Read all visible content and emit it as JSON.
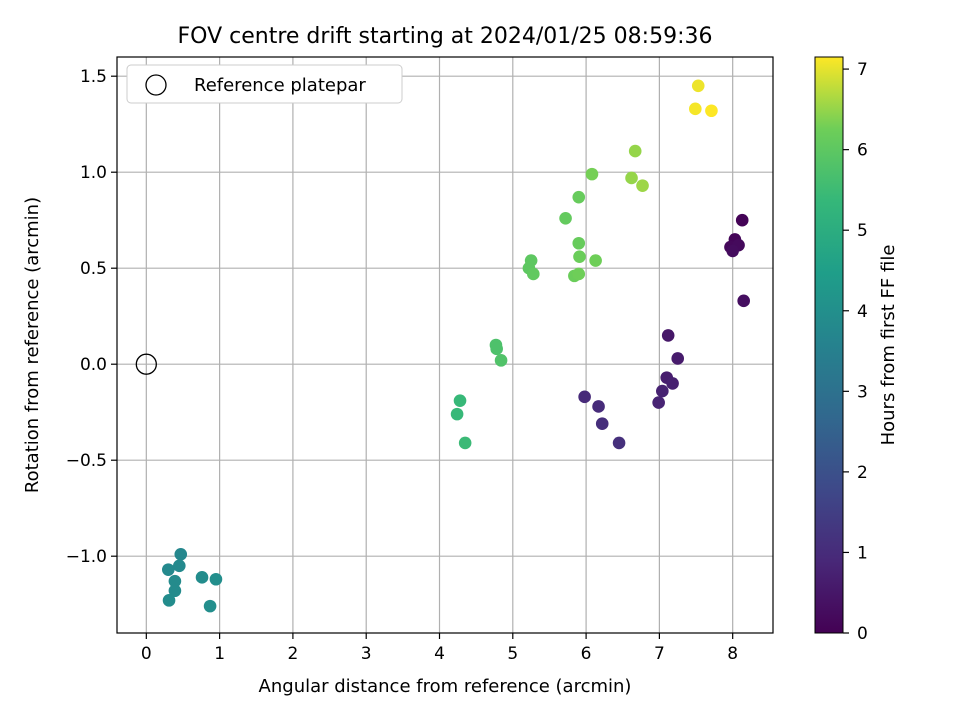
{
  "chart_data": {
    "type": "scatter",
    "title": "FOV centre drift starting at 2024/01/25 08:59:36",
    "xlabel": "Angular distance from reference (arcmin)",
    "ylabel": "Rotation from reference (arcmin)",
    "xlim": [
      -0.4,
      8.55
    ],
    "ylim": [
      -1.4,
      1.6
    ],
    "x_ticks": [
      0,
      1,
      2,
      3,
      4,
      5,
      6,
      7,
      8
    ],
    "y_ticks": [
      -1.0,
      -0.5,
      0.0,
      0.5,
      1.0,
      1.5
    ],
    "y_tick_labels": [
      "−1.0",
      "−0.5",
      "0.0",
      "0.5",
      "1.0",
      "1.5"
    ],
    "grid": true,
    "legend_position": "top-left",
    "reference": {
      "label": "Reference platepar",
      "x": 0,
      "y": 0
    },
    "colorbar": {
      "label": "Hours from first FF file",
      "colormap": "viridis",
      "range": [
        0,
        7.15
      ],
      "ticks": [
        0,
        1,
        2,
        3,
        4,
        5,
        6,
        7
      ]
    },
    "points": [
      {
        "x": 8.13,
        "y": 0.75,
        "c": 0.05
      },
      {
        "x": 8.03,
        "y": 0.65,
        "c": 0.1
      },
      {
        "x": 7.97,
        "y": 0.61,
        "c": 0.15
      },
      {
        "x": 8.08,
        "y": 0.62,
        "c": 0.2
      },
      {
        "x": 8.0,
        "y": 0.59,
        "c": 0.25
      },
      {
        "x": 8.15,
        "y": 0.33,
        "c": 0.3
      },
      {
        "x": 7.12,
        "y": 0.15,
        "c": 0.5
      },
      {
        "x": 7.25,
        "y": 0.03,
        "c": 0.6
      },
      {
        "x": 7.1,
        "y": -0.07,
        "c": 0.65
      },
      {
        "x": 7.18,
        "y": -0.1,
        "c": 0.7
      },
      {
        "x": 7.04,
        "y": -0.14,
        "c": 0.75
      },
      {
        "x": 6.99,
        "y": -0.2,
        "c": 0.8
      },
      {
        "x": 5.98,
        "y": -0.17,
        "c": 0.95
      },
      {
        "x": 6.17,
        "y": -0.22,
        "c": 1.0
      },
      {
        "x": 6.22,
        "y": -0.31,
        "c": 1.05
      },
      {
        "x": 6.45,
        "y": -0.41,
        "c": 1.1
      },
      {
        "x": 0.47,
        "y": -0.99,
        "c": 3.75
      },
      {
        "x": 0.45,
        "y": -1.05,
        "c": 3.8
      },
      {
        "x": 0.3,
        "y": -1.07,
        "c": 3.8
      },
      {
        "x": 0.39,
        "y": -1.13,
        "c": 3.85
      },
      {
        "x": 0.39,
        "y": -1.18,
        "c": 3.85
      },
      {
        "x": 0.31,
        "y": -1.23,
        "c": 3.9
      },
      {
        "x": 0.76,
        "y": -1.11,
        "c": 3.9
      },
      {
        "x": 0.95,
        "y": -1.12,
        "c": 3.95
      },
      {
        "x": 0.87,
        "y": -1.26,
        "c": 3.95
      },
      {
        "x": 4.28,
        "y": -0.19,
        "c": 5.4
      },
      {
        "x": 4.24,
        "y": -0.26,
        "c": 5.4
      },
      {
        "x": 4.35,
        "y": -0.41,
        "c": 5.45
      },
      {
        "x": 4.77,
        "y": 0.1,
        "c": 5.75
      },
      {
        "x": 4.78,
        "y": 0.08,
        "c": 5.75
      },
      {
        "x": 4.84,
        "y": 0.02,
        "c": 5.8
      },
      {
        "x": 5.25,
        "y": 0.54,
        "c": 6.0
      },
      {
        "x": 5.22,
        "y": 0.5,
        "c": 6.0
      },
      {
        "x": 5.28,
        "y": 0.47,
        "c": 6.05
      },
      {
        "x": 5.72,
        "y": 0.76,
        "c": 6.1
      },
      {
        "x": 5.9,
        "y": 0.87,
        "c": 6.15
      },
      {
        "x": 5.9,
        "y": 0.63,
        "c": 6.15
      },
      {
        "x": 5.91,
        "y": 0.56,
        "c": 6.2
      },
      {
        "x": 5.84,
        "y": 0.46,
        "c": 6.2
      },
      {
        "x": 5.9,
        "y": 0.47,
        "c": 6.25
      },
      {
        "x": 6.13,
        "y": 0.54,
        "c": 6.25
      },
      {
        "x": 6.08,
        "y": 0.99,
        "c": 6.3
      },
      {
        "x": 6.67,
        "y": 1.11,
        "c": 6.5
      },
      {
        "x": 6.62,
        "y": 0.97,
        "c": 6.5
      },
      {
        "x": 6.77,
        "y": 0.93,
        "c": 6.55
      },
      {
        "x": 7.53,
        "y": 1.45,
        "c": 7.05
      },
      {
        "x": 7.49,
        "y": 1.33,
        "c": 7.1
      },
      {
        "x": 7.71,
        "y": 1.32,
        "c": 7.15
      }
    ]
  }
}
